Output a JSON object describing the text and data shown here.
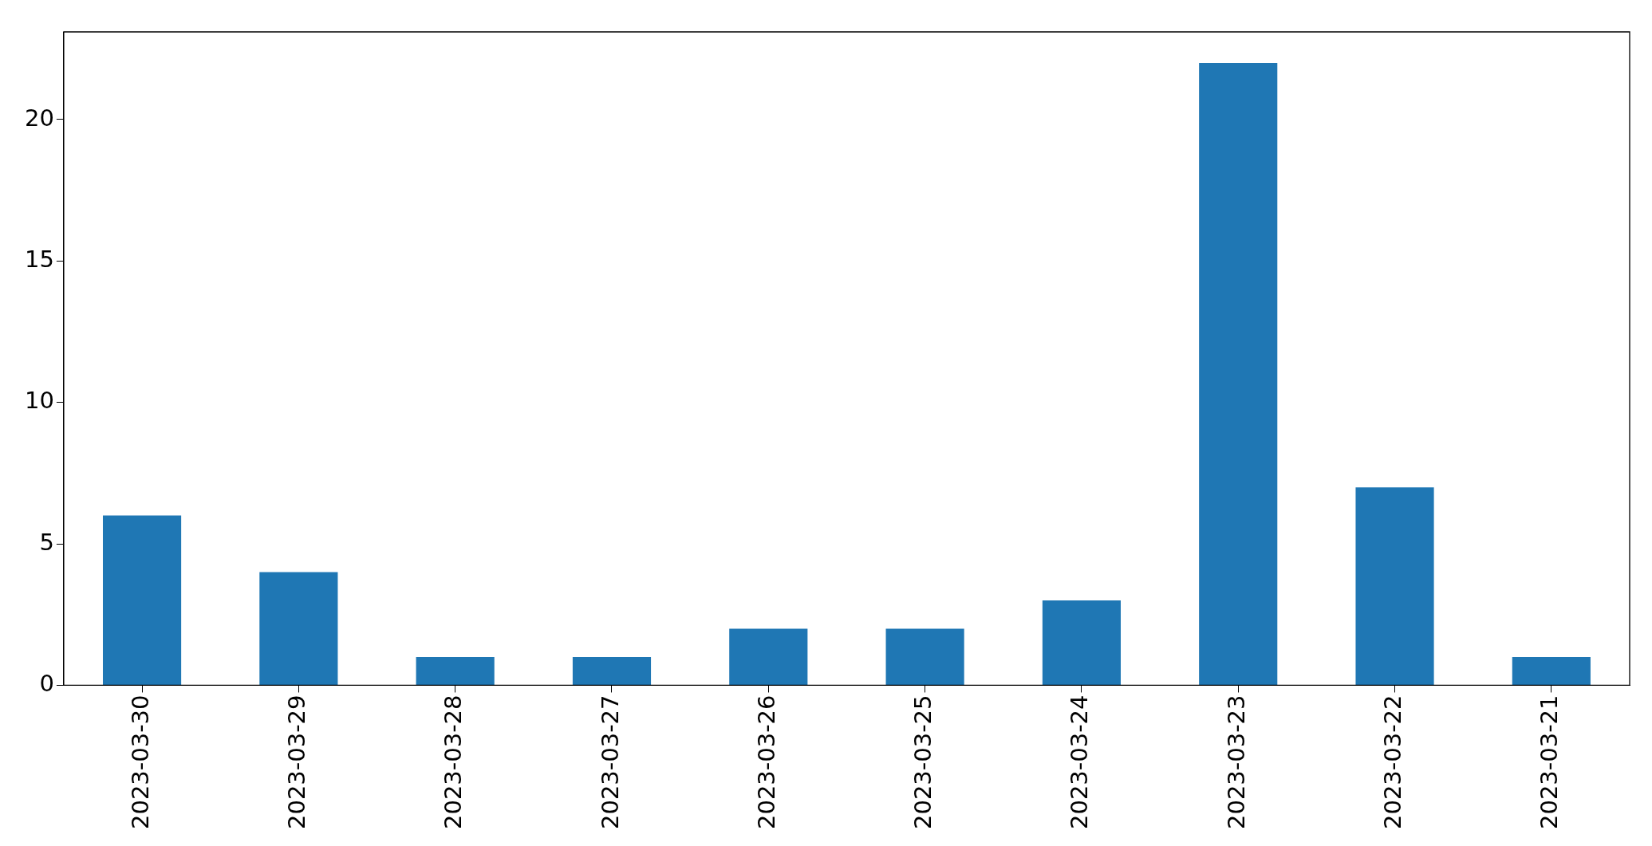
{
  "chart_data": {
    "type": "bar",
    "categories": [
      "2023-03-30",
      "2023-03-29",
      "2023-03-28",
      "2023-03-27",
      "2023-03-26",
      "2023-03-25",
      "2023-03-24",
      "2023-03-23",
      "2023-03-22",
      "2023-03-21"
    ],
    "values": [
      6,
      4,
      1,
      1,
      2,
      2,
      3,
      22,
      7,
      1
    ],
    "color": "#1f77b4",
    "ylim": [
      0,
      23.1
    ],
    "yticks": [
      0,
      5,
      10,
      15,
      20
    ]
  }
}
